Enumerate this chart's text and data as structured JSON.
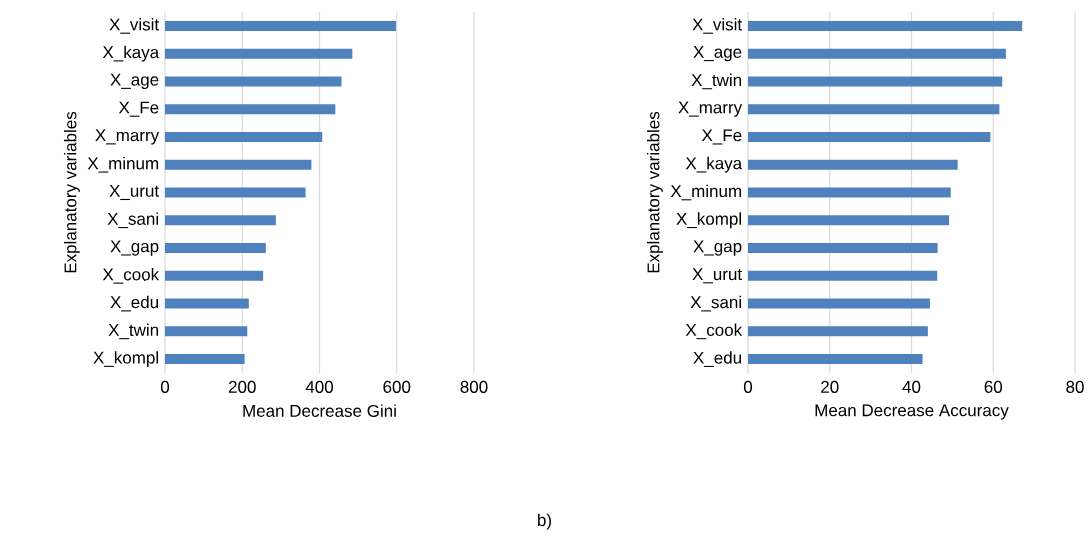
{
  "chart_data": [
    {
      "type": "bar",
      "orientation": "horizontal",
      "categories": [
        "X_visit",
        "X_kaya",
        "X_age",
        "X_Fe",
        "X_marry",
        "X_minum",
        "X_urut",
        "X_sani",
        "X_gap",
        "X_cook",
        "X_edu",
        "X_twin",
        "X_kompl"
      ],
      "values": [
        598,
        485,
        457,
        441,
        407,
        379,
        364,
        287,
        261,
        254,
        217,
        213,
        206
      ],
      "color": "#4f81bd",
      "xlim": [
        0,
        800
      ],
      "xticks": [
        0,
        200,
        400,
        600,
        800
      ],
      "grid": "x",
      "xlabel": "Mean Decrease Gini",
      "ylabel": "Explanatory variables"
    },
    {
      "type": "bar",
      "orientation": "horizontal",
      "categories": [
        "X_visit",
        "X_age",
        "X_twin",
        "X_marry",
        "X_Fe",
        "X_kaya",
        "X_minum",
        "X_kompl",
        "X_gap",
        "X_urut",
        "X_sani",
        "X_cook",
        "X_edu"
      ],
      "values": [
        67.1,
        63.1,
        62.2,
        61.5,
        59.3,
        51.3,
        49.6,
        49.2,
        46.4,
        46.3,
        44.5,
        44.0,
        42.7
      ],
      "color": "#4f81bd",
      "xlim": [
        0,
        80
      ],
      "xticks": [
        0,
        20,
        40,
        60,
        80
      ],
      "grid": "x",
      "xlabel": "Mean Decrease Accuracy",
      "ylabel": "Explanatory variables",
      "annotations": [
        "b)"
      ]
    }
  ]
}
